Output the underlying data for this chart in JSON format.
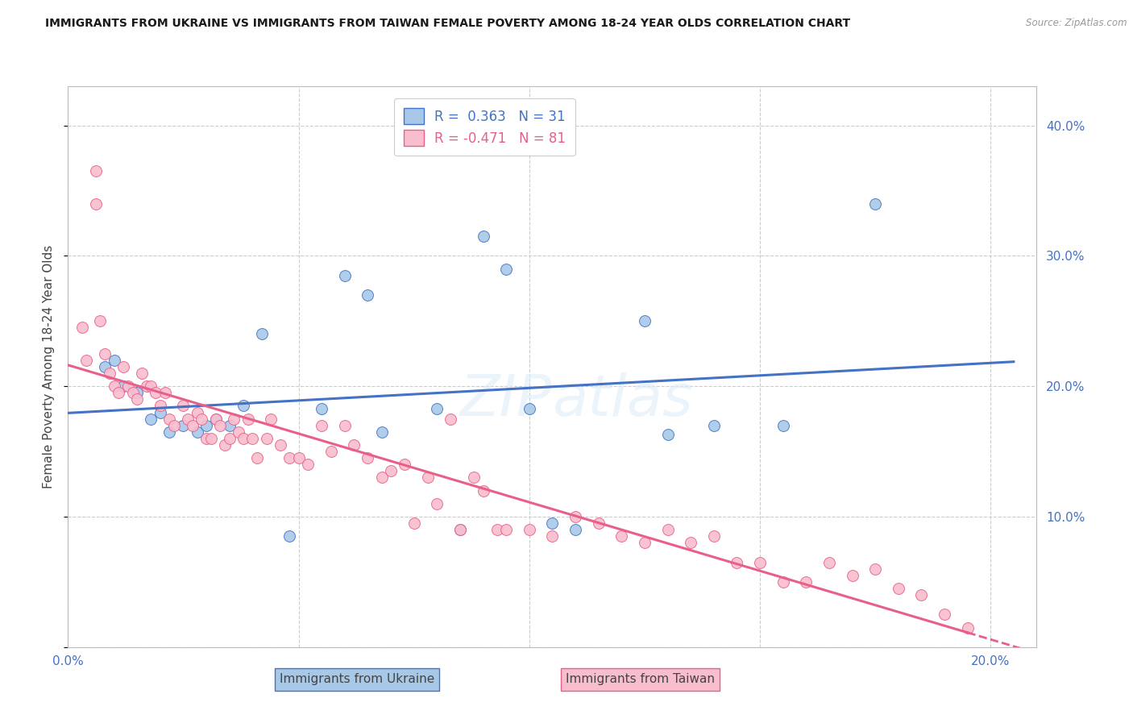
{
  "title": "IMMIGRANTS FROM UKRAINE VS IMMIGRANTS FROM TAIWAN FEMALE POVERTY AMONG 18-24 YEAR OLDS CORRELATION CHART",
  "source": "Source: ZipAtlas.com",
  "ylabel": "Female Poverty Among 18-24 Year Olds",
  "xlim": [
    0.0,
    0.21
  ],
  "ylim": [
    0.0,
    0.43
  ],
  "ukraine_color": "#a8c8e8",
  "taiwan_color": "#f9bece",
  "ukraine_line_color": "#4472c4",
  "taiwan_line_color": "#e8608a",
  "legend_ukraine_R": "0.363",
  "legend_ukraine_N": "31",
  "legend_taiwan_R": "-0.471",
  "legend_taiwan_N": "81",
  "watermark": "ZIPatlas",
  "ukraine_scatter_x": [
    0.008,
    0.01,
    0.012,
    0.015,
    0.018,
    0.02,
    0.022,
    0.025,
    0.028,
    0.03,
    0.032,
    0.035,
    0.038,
    0.042,
    0.048,
    0.055,
    0.06,
    0.065,
    0.068,
    0.08,
    0.085,
    0.09,
    0.095,
    0.1,
    0.105,
    0.11,
    0.125,
    0.13,
    0.14,
    0.155,
    0.175
  ],
  "ukraine_scatter_y": [
    0.215,
    0.22,
    0.2,
    0.195,
    0.175,
    0.18,
    0.165,
    0.17,
    0.165,
    0.17,
    0.175,
    0.17,
    0.185,
    0.24,
    0.085,
    0.183,
    0.285,
    0.27,
    0.165,
    0.183,
    0.09,
    0.315,
    0.29,
    0.183,
    0.095,
    0.09,
    0.25,
    0.163,
    0.17,
    0.17,
    0.34
  ],
  "taiwan_scatter_x": [
    0.003,
    0.004,
    0.006,
    0.006,
    0.007,
    0.008,
    0.009,
    0.01,
    0.011,
    0.012,
    0.013,
    0.014,
    0.015,
    0.016,
    0.017,
    0.018,
    0.019,
    0.02,
    0.021,
    0.022,
    0.023,
    0.025,
    0.026,
    0.027,
    0.028,
    0.029,
    0.03,
    0.031,
    0.032,
    0.033,
    0.034,
    0.035,
    0.036,
    0.037,
    0.038,
    0.039,
    0.04,
    0.041,
    0.043,
    0.044,
    0.046,
    0.048,
    0.05,
    0.052,
    0.055,
    0.057,
    0.06,
    0.062,
    0.065,
    0.068,
    0.07,
    0.073,
    0.075,
    0.078,
    0.08,
    0.083,
    0.085,
    0.088,
    0.09,
    0.093,
    0.095,
    0.1,
    0.105,
    0.11,
    0.115,
    0.12,
    0.125,
    0.13,
    0.135,
    0.14,
    0.145,
    0.15,
    0.155,
    0.16,
    0.165,
    0.17,
    0.175,
    0.18,
    0.185,
    0.19,
    0.195
  ],
  "taiwan_scatter_y": [
    0.245,
    0.22,
    0.365,
    0.34,
    0.25,
    0.225,
    0.21,
    0.2,
    0.195,
    0.215,
    0.2,
    0.195,
    0.19,
    0.21,
    0.2,
    0.2,
    0.195,
    0.185,
    0.195,
    0.175,
    0.17,
    0.185,
    0.175,
    0.17,
    0.18,
    0.175,
    0.16,
    0.16,
    0.175,
    0.17,
    0.155,
    0.16,
    0.175,
    0.165,
    0.16,
    0.175,
    0.16,
    0.145,
    0.16,
    0.175,
    0.155,
    0.145,
    0.145,
    0.14,
    0.17,
    0.15,
    0.17,
    0.155,
    0.145,
    0.13,
    0.135,
    0.14,
    0.095,
    0.13,
    0.11,
    0.175,
    0.09,
    0.13,
    0.12,
    0.09,
    0.09,
    0.09,
    0.085,
    0.1,
    0.095,
    0.085,
    0.08,
    0.09,
    0.08,
    0.085,
    0.065,
    0.065,
    0.05,
    0.05,
    0.065,
    0.055,
    0.06,
    0.045,
    0.04,
    0.025,
    0.015
  ],
  "background_color": "#ffffff",
  "grid_color": "#cccccc",
  "title_color": "#1a1a1a",
  "tick_label_color": "#4472c4"
}
